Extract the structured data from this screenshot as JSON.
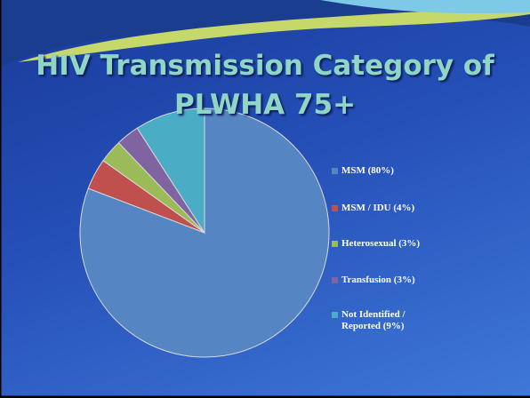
{
  "chart_data": {
    "type": "pie",
    "title": "HIV Transmission Category of PLWHA 75+",
    "categories": [
      "MSM (80%)",
      "MSM / IDU (4%)",
      "Heterosexual (3%)",
      "Transfusion (3%)",
      "Not Identified / Reported (9%)"
    ],
    "values": [
      80,
      4,
      3,
      3,
      9
    ],
    "colors": [
      "#5585c2",
      "#c0504d",
      "#9bbb59",
      "#8064a2",
      "#4bacc6"
    ],
    "legend": "right"
  }
}
